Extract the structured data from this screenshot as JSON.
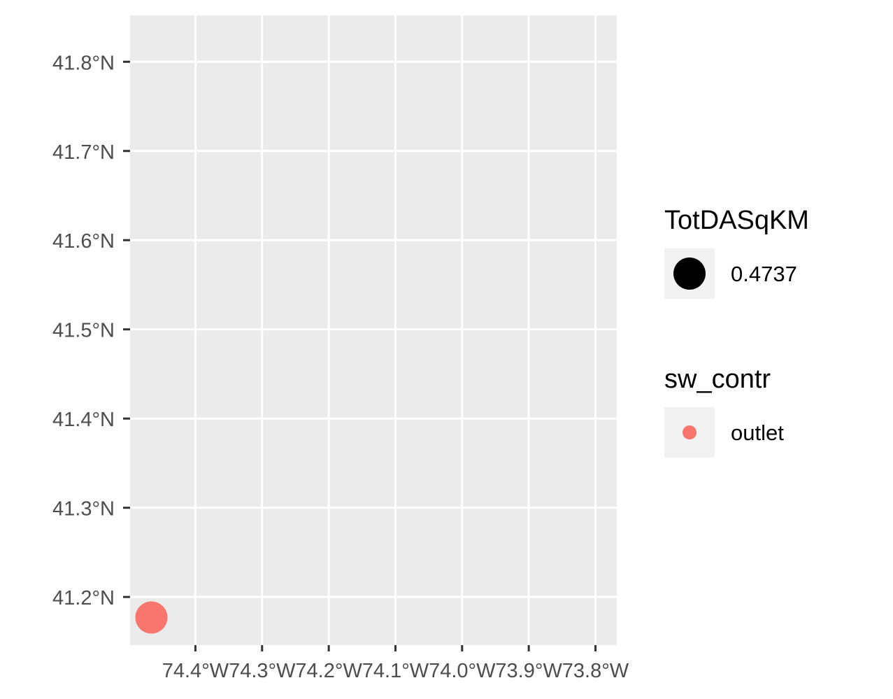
{
  "chart_data": {
    "type": "scatter",
    "xlabel": "",
    "ylabel": "",
    "x_ticks": [
      {
        "value": -74.4,
        "label": "74.4°W"
      },
      {
        "value": -74.3,
        "label": "74.3°W"
      },
      {
        "value": -74.2,
        "label": "74.2°W"
      },
      {
        "value": -74.1,
        "label": "74.1°W"
      },
      {
        "value": -74.0,
        "label": "74.0°W"
      },
      {
        "value": -73.9,
        "label": "73.9°W"
      },
      {
        "value": -73.8,
        "label": "73.8°W"
      }
    ],
    "y_ticks": [
      {
        "value": 41.2,
        "label": "41.2°N"
      },
      {
        "value": 41.3,
        "label": "41.3°N"
      },
      {
        "value": 41.4,
        "label": "41.4°N"
      },
      {
        "value": 41.5,
        "label": "41.5°N"
      },
      {
        "value": 41.6,
        "label": "41.6°N"
      },
      {
        "value": 41.7,
        "label": "41.7°N"
      },
      {
        "value": 41.8,
        "label": "41.8°N"
      }
    ],
    "xlim": [
      -74.498,
      -73.768
    ],
    "ylim": [
      41.146,
      41.852
    ],
    "grid": true,
    "panel_background": "#ebebeb",
    "grid_color": "#ffffff",
    "points": [
      {
        "lon": -74.466,
        "lat": 41.177,
        "sw_contr": "outlet",
        "TotDASqKM": 0.4737,
        "color": "#f8766d"
      }
    ],
    "legends": [
      {
        "title": "TotDASqKM",
        "entries": [
          {
            "label": "0.4737",
            "color": "#000000",
            "size": "large"
          }
        ]
      },
      {
        "title": "sw_contr",
        "entries": [
          {
            "label": "outlet",
            "color": "#f8766d",
            "size": "small"
          }
        ]
      }
    ],
    "legend_position": "right"
  }
}
